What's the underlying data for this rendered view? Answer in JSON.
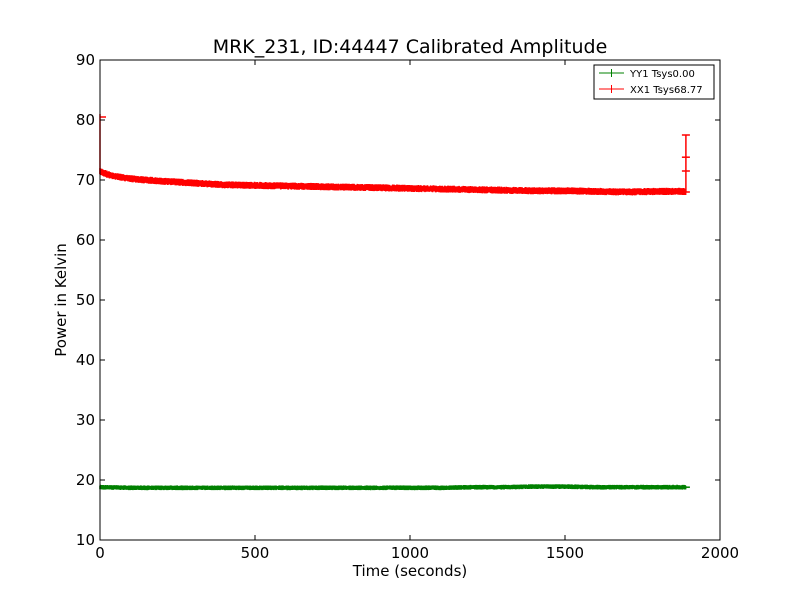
{
  "chart_data": {
    "type": "line",
    "title": "MRK_231, ID:44447 Calibrated Amplitude",
    "xlabel": "Time (seconds)",
    "ylabel": "Power in Kelvin",
    "xlim": [
      0,
      2000
    ],
    "ylim": [
      10,
      90
    ],
    "x_ticks": [
      0,
      500,
      1000,
      1500,
      2000
    ],
    "y_ticks": [
      10,
      20,
      30,
      40,
      50,
      60,
      70,
      80,
      90
    ],
    "x_tick_labels": [
      "0",
      "500",
      "1000",
      "1500",
      "2000"
    ],
    "y_tick_labels": [
      "10",
      "20",
      "30",
      "40",
      "50",
      "60",
      "70",
      "80",
      "90"
    ],
    "grid": false,
    "legend_position": "top-right",
    "series": [
      {
        "name": "YY1 Tsys0.00",
        "color": "#008000",
        "x": [
          0,
          100,
          200,
          300,
          400,
          500,
          600,
          700,
          800,
          900,
          1000,
          1100,
          1200,
          1300,
          1400,
          1500,
          1600,
          1700,
          1800,
          1890
        ],
        "y": [
          18.8,
          18.7,
          18.7,
          18.7,
          18.7,
          18.7,
          18.7,
          18.7,
          18.7,
          18.7,
          18.7,
          18.7,
          18.8,
          18.8,
          18.9,
          18.9,
          18.8,
          18.8,
          18.8,
          18.8
        ],
        "band": 0.4
      },
      {
        "name": "XX1 Tsys68.77",
        "color": "#ff0000",
        "x": [
          0,
          20,
          50,
          100,
          150,
          200,
          300,
          400,
          500,
          600,
          700,
          800,
          900,
          1000,
          1100,
          1200,
          1300,
          1400,
          1500,
          1600,
          1700,
          1800,
          1890
        ],
        "y": [
          71.5,
          71.0,
          70.6,
          70.2,
          70.0,
          69.8,
          69.5,
          69.2,
          69.1,
          69.0,
          68.9,
          68.8,
          68.7,
          68.6,
          68.5,
          68.4,
          68.3,
          68.2,
          68.2,
          68.1,
          68.0,
          68.1,
          68.1
        ],
        "band": 0.6
      }
    ]
  }
}
